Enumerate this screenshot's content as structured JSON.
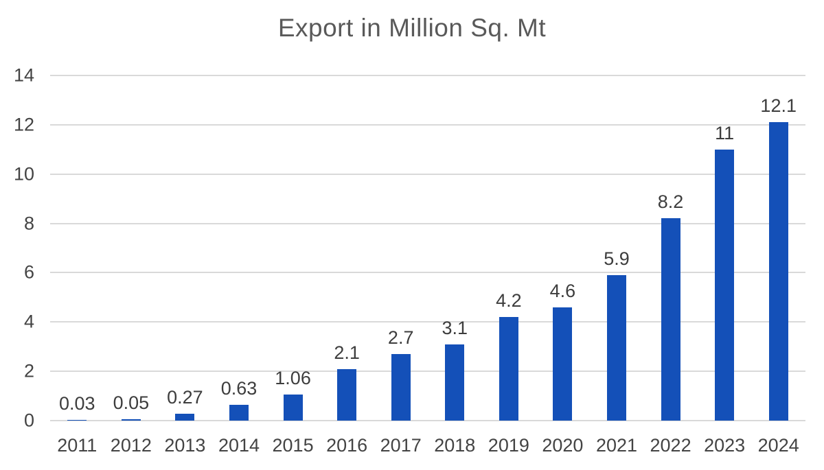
{
  "chart_data": {
    "type": "bar",
    "title": "Export in Million Sq. Mt",
    "categories": [
      "2011",
      "2012",
      "2013",
      "2014",
      "2015",
      "2016",
      "2017",
      "2018",
      "2019",
      "2020",
      "2021",
      "2022",
      "2023",
      "2024"
    ],
    "values": [
      0.03,
      0.05,
      0.27,
      0.63,
      1.06,
      2.1,
      2.7,
      3.1,
      4.2,
      4.6,
      5.9,
      8.2,
      11,
      12.1
    ],
    "value_labels": [
      "0.03",
      "0.05",
      "0.27",
      "0.63",
      "1.06",
      "2.1",
      "2.7",
      "3.1",
      "4.2",
      "4.6",
      "5.9",
      "8.2",
      "11",
      "12.1"
    ],
    "xlabel": "",
    "ylabel": "",
    "ylim": [
      0,
      14
    ],
    "yticks": [
      0,
      2,
      4,
      6,
      8,
      10,
      12,
      14
    ],
    "ytick_labels": [
      "0",
      "2",
      "4",
      "6",
      "8",
      "10",
      "12",
      "14"
    ],
    "grid": true,
    "legend": false,
    "colors": {
      "bar": "#1450b8",
      "gridline": "#d9d9d9",
      "title": "#595959",
      "tick": "#434343",
      "value_label": "#3d3d3d",
      "background": "#ffffff"
    }
  }
}
